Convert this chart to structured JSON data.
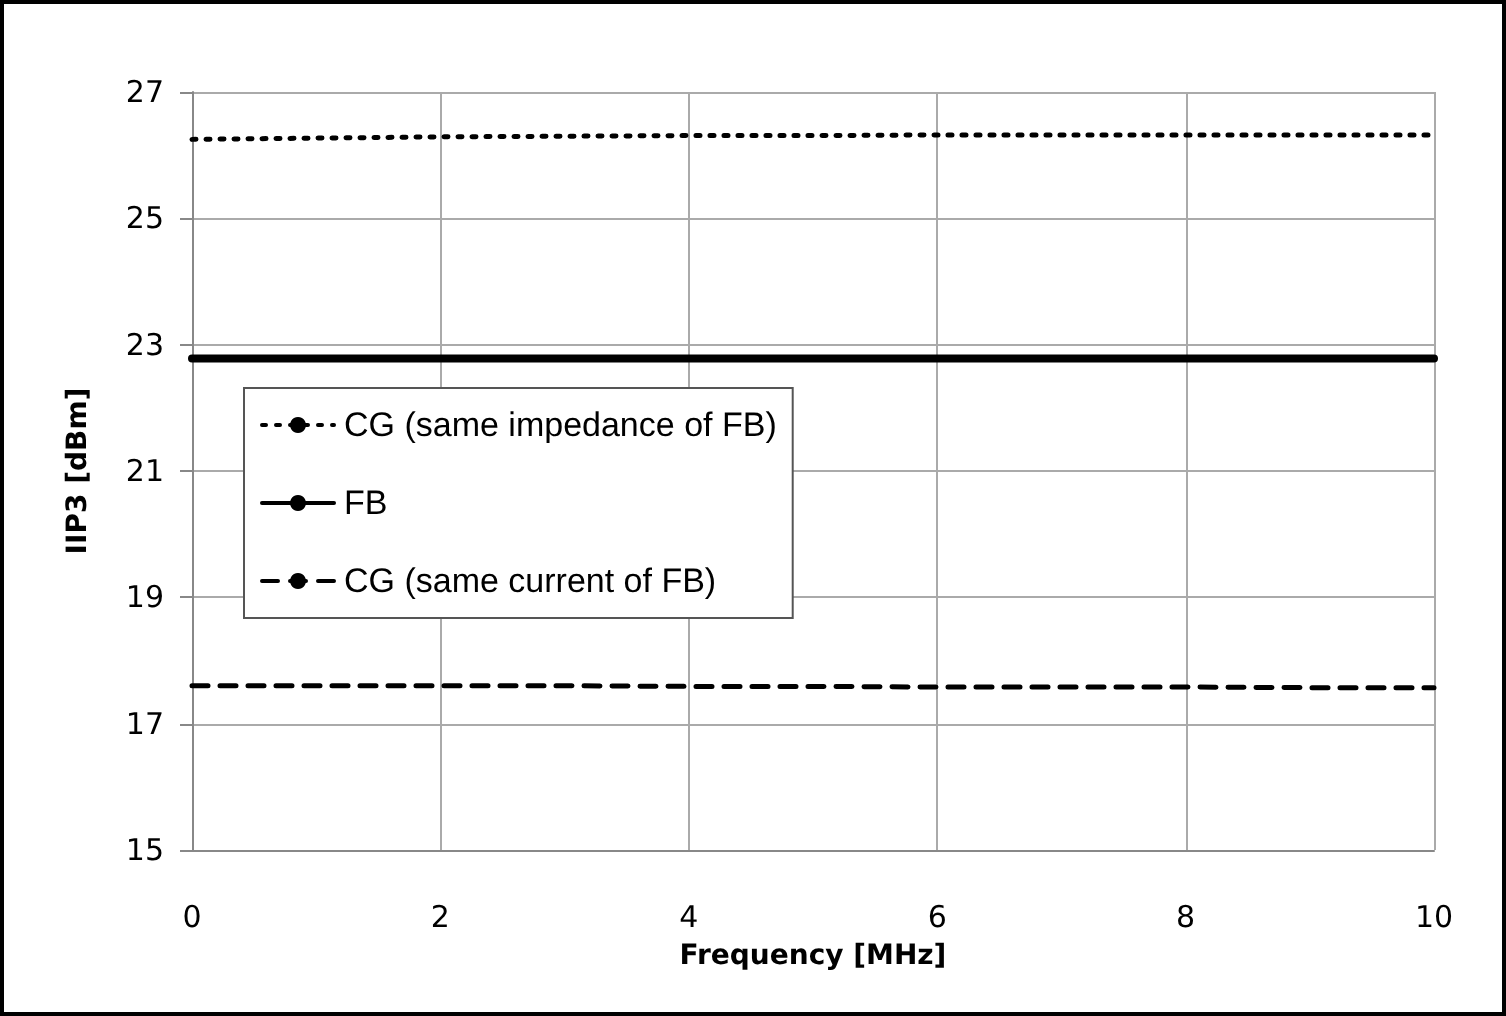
{
  "chart_data": {
    "type": "line",
    "xlabel": "Frequency [MHz]",
    "ylabel": "IIP3 [dBm]",
    "x": [
      0,
      1,
      2,
      3,
      4,
      5,
      6,
      7,
      8,
      9,
      10
    ],
    "series": [
      {
        "name": "CG (same impedance of FB)",
        "color": "#000000",
        "line_style": "dotted",
        "values": [
          26.25,
          26.27,
          26.29,
          26.3,
          26.31,
          26.31,
          26.32,
          26.32,
          26.32,
          26.32,
          26.32
        ]
      },
      {
        "name": "FB",
        "color": "#000000",
        "line_style": "solid",
        "values": [
          22.78,
          22.78,
          22.78,
          22.78,
          22.78,
          22.78,
          22.78,
          22.78,
          22.78,
          22.78,
          22.78
        ]
      },
      {
        "name": "CG (same current of FB)",
        "color": "#000000",
        "line_style": "dashed",
        "values": [
          17.6,
          17.6,
          17.6,
          17.6,
          17.59,
          17.59,
          17.58,
          17.58,
          17.58,
          17.57,
          17.57
        ]
      }
    ],
    "xlim": [
      0,
      10
    ],
    "xticks": [
      0,
      2,
      4,
      6,
      8,
      10
    ],
    "ylim": [
      15,
      27
    ],
    "yticks": [
      15,
      17,
      19,
      21,
      23,
      25,
      27
    ],
    "grid": true,
    "legend": "left",
    "marker": "none"
  }
}
